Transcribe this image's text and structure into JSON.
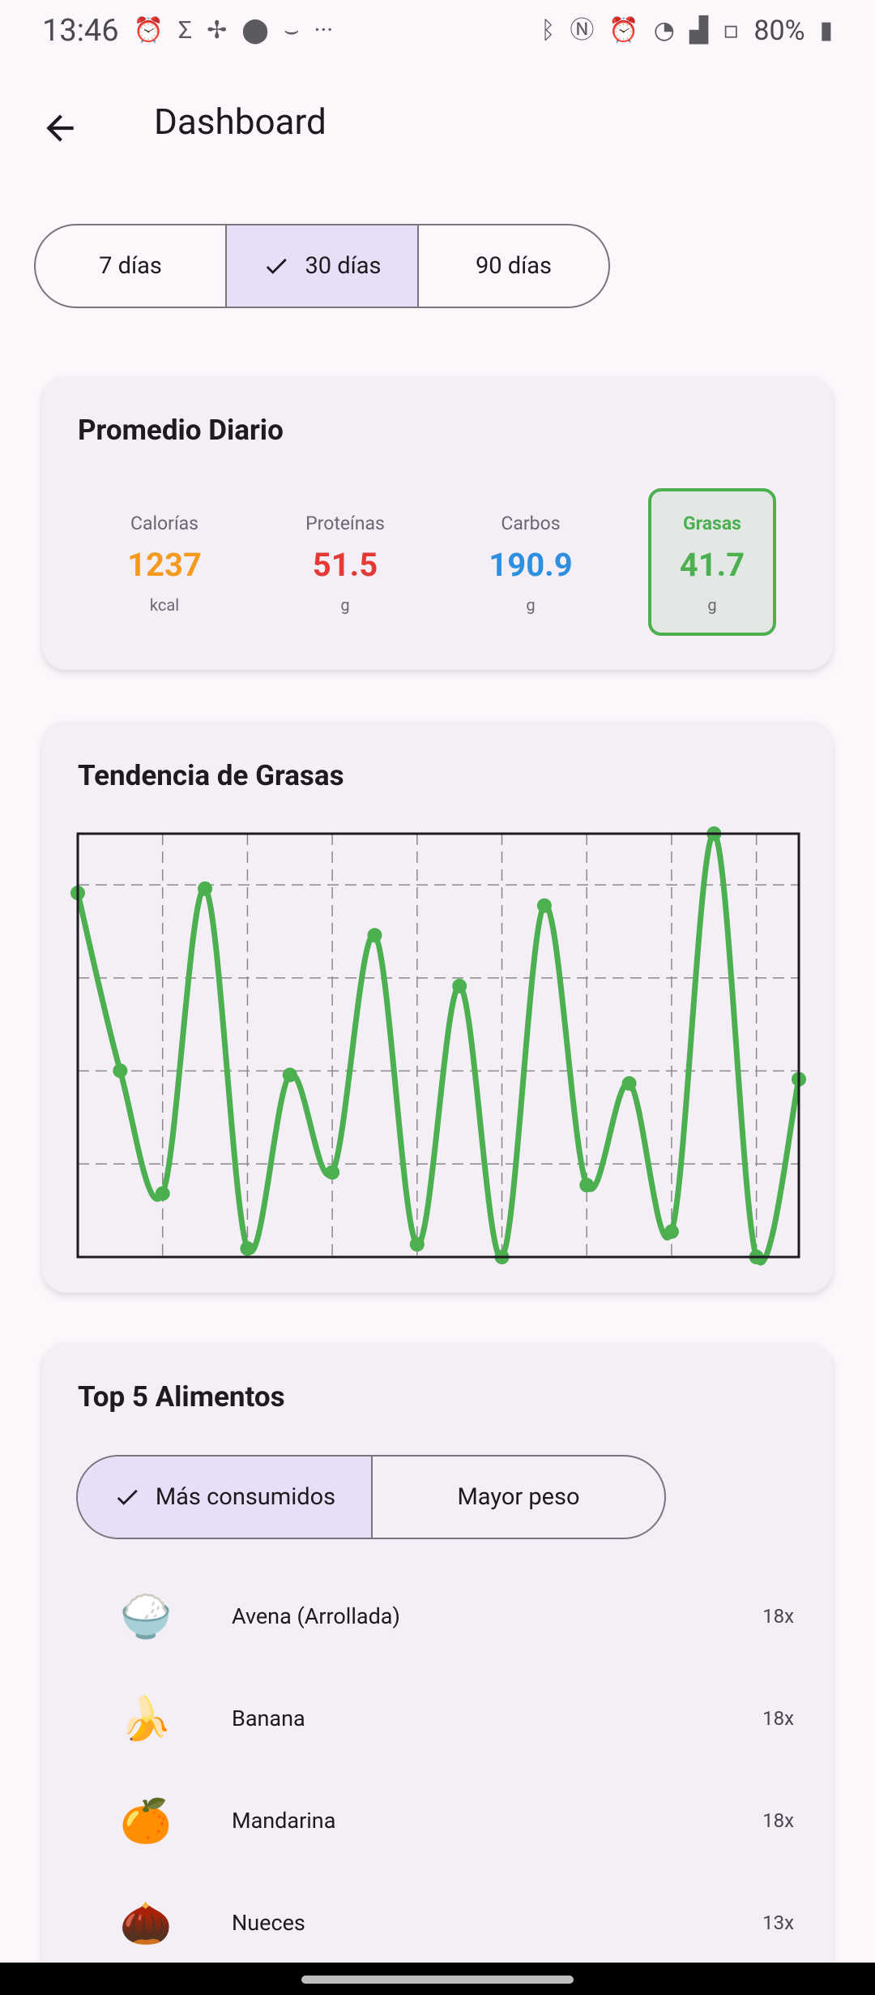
{
  "status_bar": {
    "time": "13:46",
    "battery": "80%",
    "left_icons": [
      "alarm-icon",
      "sigma-app-icon",
      "pinwheel-icon",
      "location-icon",
      "amazon-icon",
      "more-dots-icon"
    ],
    "right_icons": [
      "bluetooth-icon",
      "nfc-icon",
      "alarm-icon",
      "wifi-icon",
      "signal-icon",
      "4g-icon",
      "battery-icon"
    ]
  },
  "header": {
    "title": "Dashboard"
  },
  "period_selector": {
    "options": [
      {
        "label": "7 días",
        "selected": false
      },
      {
        "label": "30 días",
        "selected": true
      },
      {
        "label": "90 días",
        "selected": false
      }
    ]
  },
  "daily_average": {
    "title": "Promedio Diario",
    "metrics": [
      {
        "name": "Calorías",
        "value": "1237",
        "unit": "kcal",
        "color": "#f39a1f"
      },
      {
        "name": "Proteínas",
        "value": "51.5",
        "unit": "g",
        "color": "#e53935"
      },
      {
        "name": "Carbos",
        "value": "190.9",
        "unit": "g",
        "color": "#2e8fe0"
      },
      {
        "name": "Grasas",
        "value": "41.7",
        "unit": "g",
        "color": "#4caf50",
        "selected": true
      }
    ]
  },
  "trend": {
    "title": "Tendencia de Grasas"
  },
  "chart_data": {
    "type": "line",
    "title": "Tendencia de Grasas",
    "xlabel": "",
    "ylabel": "",
    "grid": true,
    "ylim": [
      0,
      100
    ],
    "x": [
      1,
      2,
      3,
      4,
      5,
      6,
      7,
      8,
      9,
      10,
      11,
      12,
      13,
      14,
      15,
      16,
      17,
      18
    ],
    "series": [
      {
        "color": "#4caf50",
        "values": [
          86,
          44,
          15,
          87,
          2,
          43,
          20,
          76,
          3,
          64,
          0,
          83,
          17,
          41,
          6,
          100,
          0,
          42
        ]
      }
    ]
  },
  "top_foods": {
    "title": "Top 5 Alimentos",
    "tabs": [
      {
        "label": "Más consumidos",
        "selected": true
      },
      {
        "label": "Mayor peso",
        "selected": false
      }
    ],
    "items": [
      {
        "emoji": "🍚",
        "name": "Avena (Arrollada)",
        "count": "18x"
      },
      {
        "emoji": "🍌",
        "name": "Banana",
        "count": "18x"
      },
      {
        "emoji": "🍊",
        "name": "Mandarina",
        "count": "18x"
      },
      {
        "emoji": "🌰",
        "name": "Nueces",
        "count": "13x"
      }
    ]
  }
}
